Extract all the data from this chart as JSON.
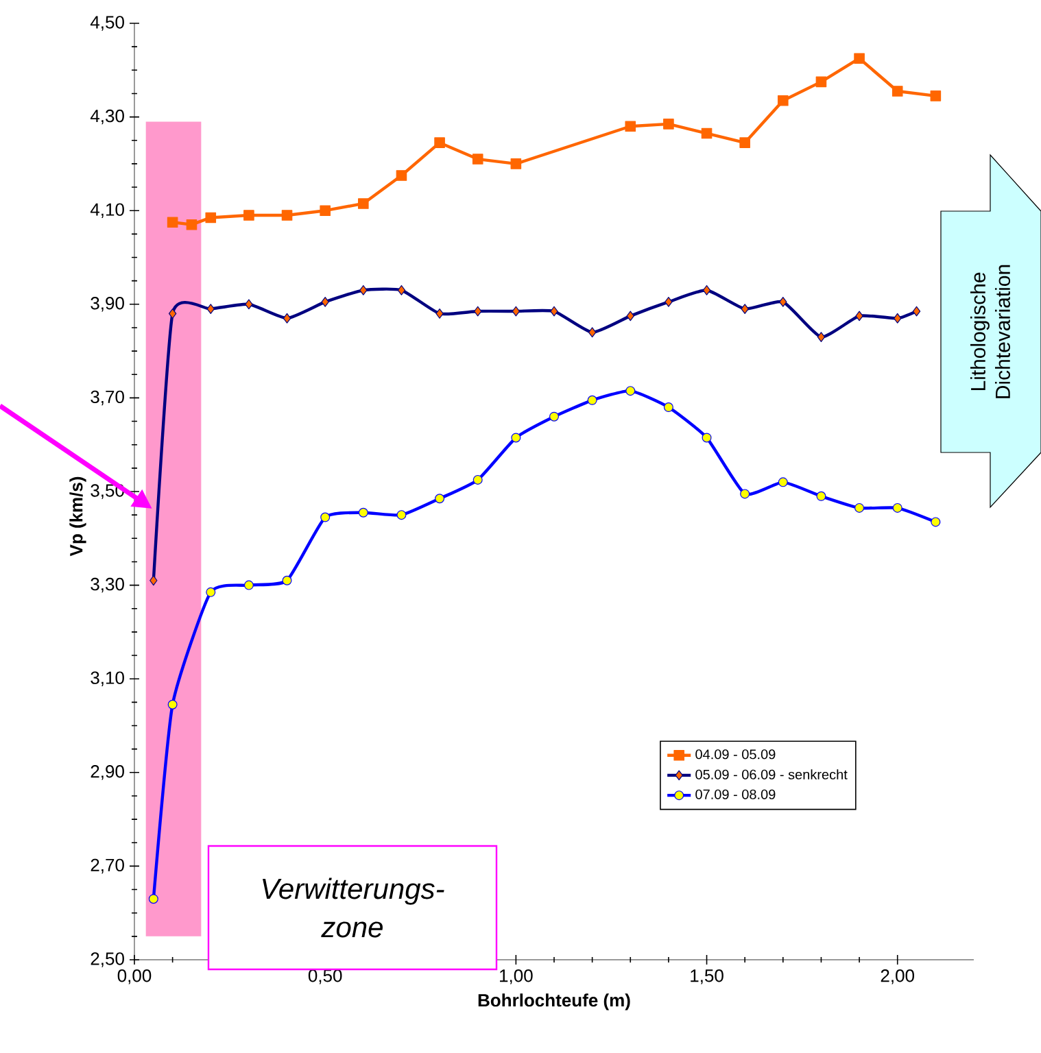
{
  "chart_data": {
    "type": "line",
    "xlabel": "Bohrlochteufe (m)",
    "ylabel": "Vp (km/s)",
    "xlim": [
      0,
      2.2
    ],
    "ylim": [
      2.5,
      4.5
    ],
    "xticks": [
      {
        "value": 0,
        "label": "0,00"
      },
      {
        "value": 0.5,
        "label": "0,50"
      },
      {
        "value": 1.0,
        "label": "1,00"
      },
      {
        "value": 1.5,
        "label": "1,50"
      },
      {
        "value": 2.0,
        "label": "2,00"
      }
    ],
    "yticks": [
      {
        "value": 2.5,
        "label": "2,50"
      },
      {
        "value": 2.7,
        "label": "2,70"
      },
      {
        "value": 2.9,
        "label": "2,90"
      },
      {
        "value": 3.1,
        "label": "3,10"
      },
      {
        "value": 3.3,
        "label": "3,30"
      },
      {
        "value": 3.5,
        "label": "3,50"
      },
      {
        "value": 3.7,
        "label": "3,70"
      },
      {
        "value": 3.9,
        "label": "3,90"
      },
      {
        "value": 4.1,
        "label": "4,10"
      },
      {
        "value": 4.3,
        "label": "4,30"
      },
      {
        "value": 4.5,
        "label": "4,50"
      }
    ],
    "grid": false,
    "legend": "bottom right",
    "bands": [
      {
        "axis": "x",
        "from": 0.03,
        "to": 0.175,
        "color": "#ff99cc"
      }
    ],
    "annotations": [
      "Verwitterungs- zone",
      "Lithologische Dichtevariation"
    ],
    "series": [
      {
        "name": "04.09 - 05.09",
        "color": "#ff6600",
        "marker": "square",
        "x": [
          0.1,
          0.15,
          0.2,
          0.3,
          0.4,
          0.5,
          0.6,
          0.7,
          0.8,
          0.9,
          1.0,
          1.3,
          1.4,
          1.5,
          1.6,
          1.7,
          1.8,
          1.9,
          2.0,
          2.1
        ],
        "values": [
          4.075,
          4.07,
          4.085,
          4.09,
          4.09,
          4.1,
          4.115,
          4.175,
          4.245,
          4.21,
          4.2,
          4.28,
          4.285,
          4.265,
          4.245,
          4.335,
          4.375,
          4.425,
          4.355,
          4.345
        ]
      },
      {
        "name": "05.09 - 06.09 - senkrecht",
        "color": "#000080",
        "marker": "diamond",
        "x": [
          0.05,
          0.1,
          0.2,
          0.3,
          0.4,
          0.5,
          0.6,
          0.7,
          0.8,
          0.9,
          1.0,
          1.1,
          1.2,
          1.3,
          1.4,
          1.5,
          1.6,
          1.7,
          1.8,
          1.9,
          2.0,
          2.05
        ],
        "values": [
          3.31,
          3.88,
          3.89,
          3.9,
          3.87,
          3.905,
          3.93,
          3.93,
          3.88,
          3.885,
          3.885,
          3.885,
          3.84,
          3.875,
          3.905,
          3.93,
          3.89,
          3.905,
          3.83,
          3.875,
          3.87,
          3.885
        ]
      },
      {
        "name": "07.09 - 08.09",
        "color": "#0000ff",
        "marker": "circle",
        "x": [
          0.05,
          0.1,
          0.2,
          0.3,
          0.4,
          0.5,
          0.6,
          0.7,
          0.8,
          0.9,
          1.0,
          1.1,
          1.2,
          1.3,
          1.4,
          1.5,
          1.6,
          1.7,
          1.8,
          1.9,
          2.0,
          2.1
        ],
        "values": [
          2.63,
          3.045,
          3.285,
          3.3,
          3.31,
          3.445,
          3.455,
          3.45,
          3.485,
          3.525,
          3.615,
          3.66,
          3.695,
          3.715,
          3.68,
          3.615,
          3.495,
          3.52,
          3.49,
          3.465,
          3.465,
          3.435
        ]
      }
    ]
  }
}
